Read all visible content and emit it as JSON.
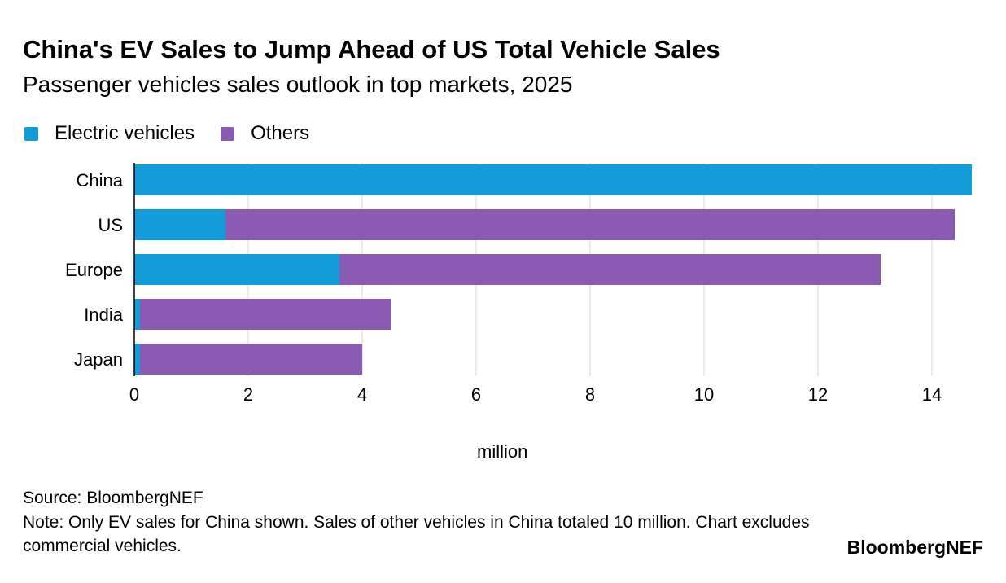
{
  "header": {
    "title": "China's EV Sales to Jump Ahead of US Total Vehicle Sales",
    "subtitle": "Passenger vehicles sales outlook in top markets, 2025"
  },
  "legend": {
    "items": [
      {
        "label": "Electric vehicles",
        "color": "#129CD9"
      },
      {
        "label": "Others",
        "color": "#8B5AB2"
      }
    ]
  },
  "footer": {
    "source": "Source: BloombergNEF",
    "note": "Note: Only EV sales for China shown. Sales of other vehicles in China totaled 10 million. Chart excludes commercial vehicles.",
    "brand": "BloombergNEF"
  },
  "chart_data": {
    "type": "bar",
    "orientation": "horizontal",
    "stacked": true,
    "categories": [
      "China",
      "US",
      "Europe",
      "India",
      "Japan"
    ],
    "series": [
      {
        "name": "Electric vehicles",
        "color": "#129CD9",
        "values": [
          14.7,
          1.6,
          3.6,
          0.1,
          0.1
        ]
      },
      {
        "name": "Others",
        "color": "#8B5AB2",
        "values": [
          null,
          12.8,
          9.5,
          4.4,
          3.9
        ]
      }
    ],
    "xlabel": "million",
    "xlim": [
      0,
      14.7
    ],
    "xticks": [
      0,
      2,
      4,
      6,
      8,
      10,
      12,
      14
    ],
    "grid": true
  }
}
